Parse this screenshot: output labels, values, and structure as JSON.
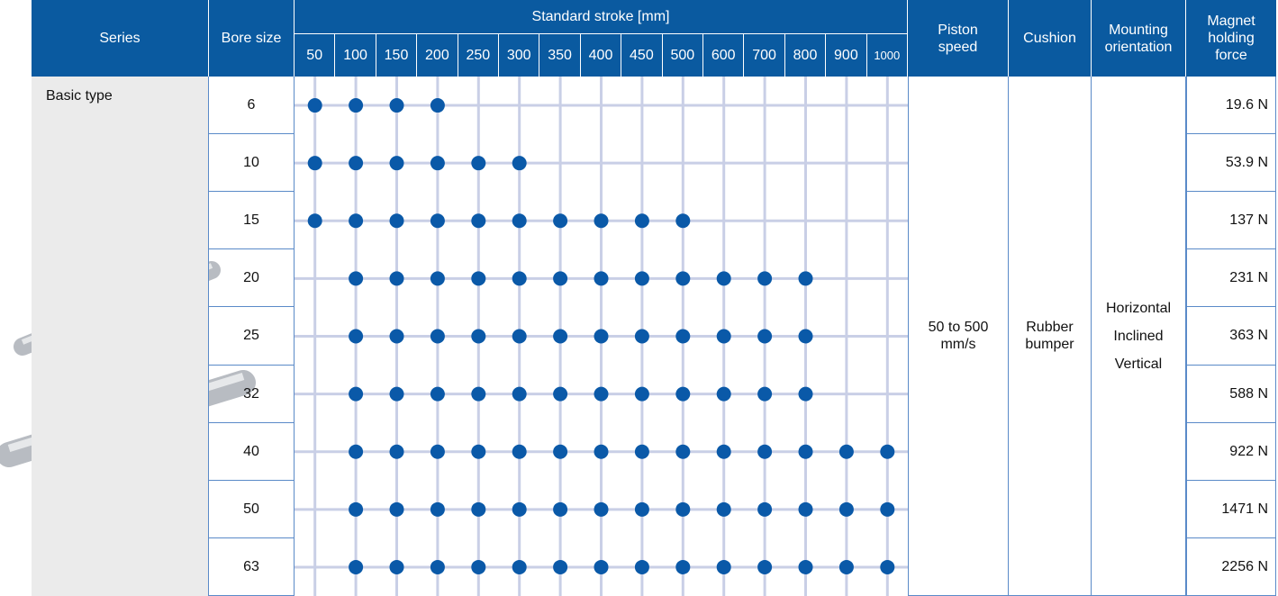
{
  "header": {
    "series": "Series",
    "bore": "Bore size",
    "stroke": "Standard stroke [mm]",
    "strokes": [
      50,
      100,
      150,
      200,
      250,
      300,
      350,
      400,
      450,
      500,
      600,
      700,
      800,
      900,
      1000
    ],
    "piston_speed": "Piston speed",
    "cushion": "Cushion",
    "mounting": "Mounting orientation",
    "magnet": "Magnet holding force"
  },
  "series_label": "Basic type",
  "piston_speed": "50 to 500 mm/s",
  "cushion": "Rubber bumper",
  "mounting": [
    "Horizontal",
    "Inclined",
    "Vertical"
  ],
  "rows": [
    {
      "bore": 6,
      "force": "19.6 N",
      "strokes": [
        50,
        100,
        150,
        200
      ]
    },
    {
      "bore": 10,
      "force": "53.9 N",
      "strokes": [
        50,
        100,
        150,
        200,
        250,
        300
      ]
    },
    {
      "bore": 15,
      "force": "137 N",
      "strokes": [
        50,
        100,
        150,
        200,
        250,
        300,
        350,
        400,
        450,
        500
      ]
    },
    {
      "bore": 20,
      "force": "231 N",
      "strokes": [
        100,
        150,
        200,
        250,
        300,
        350,
        400,
        450,
        500,
        600,
        700,
        800
      ]
    },
    {
      "bore": 25,
      "force": "363 N",
      "strokes": [
        100,
        150,
        200,
        250,
        300,
        350,
        400,
        450,
        500,
        600,
        700,
        800
      ]
    },
    {
      "bore": 32,
      "force": "588 N",
      "strokes": [
        100,
        150,
        200,
        250,
        300,
        350,
        400,
        450,
        500,
        600,
        700,
        800
      ]
    },
    {
      "bore": 40,
      "force": "922 N",
      "strokes": [
        100,
        150,
        200,
        250,
        300,
        350,
        400,
        450,
        500,
        600,
        700,
        800,
        900,
        1000
      ]
    },
    {
      "bore": 50,
      "force": "1471 N",
      "strokes": [
        100,
        150,
        200,
        250,
        300,
        350,
        400,
        450,
        500,
        600,
        700,
        800,
        900,
        1000
      ]
    },
    {
      "bore": 63,
      "force": "2256 N",
      "strokes": [
        100,
        150,
        200,
        250,
        300,
        350,
        400,
        450,
        500,
        600,
        700,
        800,
        900,
        1000
      ]
    }
  ]
}
